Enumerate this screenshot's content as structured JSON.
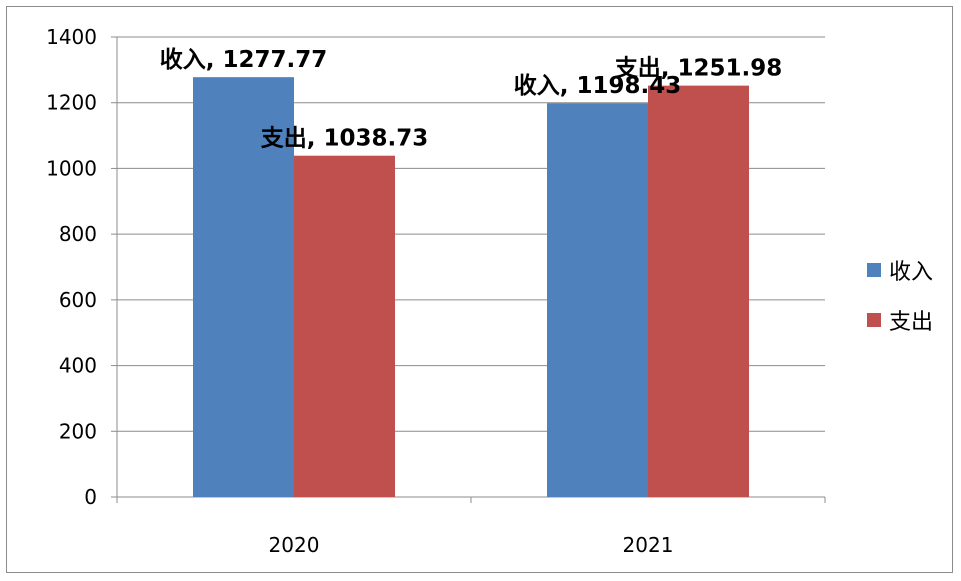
{
  "chart_data": {
    "type": "bar",
    "categories": [
      "2020",
      "2021"
    ],
    "series": [
      {
        "name": "收入",
        "values": [
          1277.77,
          1198.43
        ],
        "color": "#4f81bd"
      },
      {
        "name": "支出",
        "values": [
          1038.73,
          1251.98
        ],
        "color": "#c0504d"
      }
    ],
    "data_labels": [
      [
        "收入, 1277.77",
        "收入, 1198.43"
      ],
      [
        "支出, 1038.73",
        "支出, 1251.98"
      ]
    ],
    "y_ticks": [
      "0",
      "200",
      "400",
      "600",
      "800",
      "1000",
      "1200",
      "1400"
    ],
    "ylim": [
      0,
      1400
    ],
    "y_step": 200,
    "grid": true,
    "legend_position": "right",
    "title": "",
    "xlabel": "",
    "ylabel": ""
  }
}
